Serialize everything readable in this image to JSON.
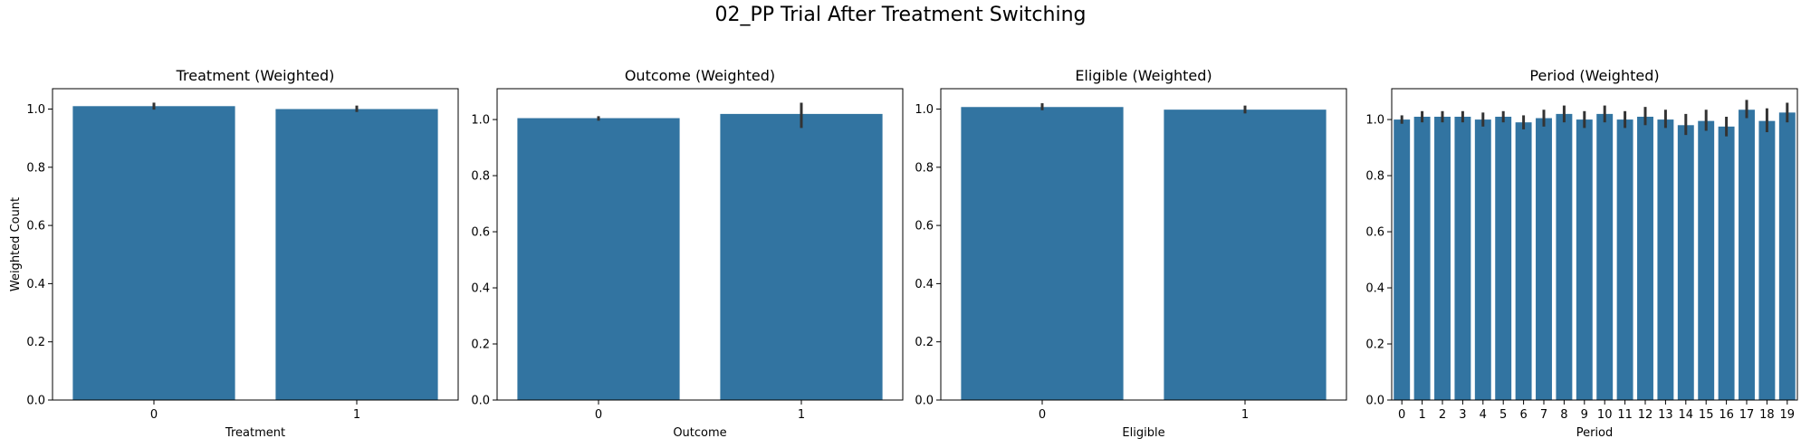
{
  "figure": {
    "suptitle": "02_PP Trial After Treatment Switching"
  },
  "colors": {
    "bar": "#3274a1",
    "errorbar": "#333333",
    "axis": "#000000"
  },
  "chart_data": [
    {
      "type": "bar",
      "title": "Treatment (Weighted)",
      "xlabel": "Treatment",
      "ylabel": "Weighted Count",
      "ylim": [
        0,
        1.07
      ],
      "yticks": [
        0.0,
        0.2,
        0.4,
        0.6,
        0.8,
        1.0
      ],
      "ytick_labels": [
        "0.0",
        "0.2",
        "0.4",
        "0.6",
        "0.8",
        "1.0"
      ],
      "categories": [
        "0",
        "1"
      ],
      "values": [
        1.01,
        1.0
      ],
      "ci": [
        [
          0.998,
          1.022
        ],
        [
          0.99,
          1.012
        ]
      ],
      "grid": false
    },
    {
      "type": "bar",
      "title": "Outcome (Weighted)",
      "xlabel": "Outcome",
      "ylabel": "",
      "ylim": [
        0,
        1.11
      ],
      "yticks": [
        0.0,
        0.2,
        0.4,
        0.6,
        0.8,
        1.0
      ],
      "ytick_labels": [
        "0.0",
        "0.2",
        "0.4",
        "0.6",
        "0.8",
        "1.0"
      ],
      "categories": [
        "0",
        "1"
      ],
      "values": [
        1.005,
        1.02
      ],
      "ci": [
        [
          0.996,
          1.012
        ],
        [
          0.97,
          1.06
        ]
      ],
      "grid": false
    },
    {
      "type": "bar",
      "title": "Eligible (Weighted)",
      "xlabel": "Eligible",
      "ylabel": "",
      "ylim": [
        0,
        1.07
      ],
      "yticks": [
        0.0,
        0.2,
        0.4,
        0.6,
        0.8,
        1.0
      ],
      "ytick_labels": [
        "0.0",
        "0.2",
        "0.4",
        "0.6",
        "0.8",
        "1.0"
      ],
      "categories": [
        "0",
        "1"
      ],
      "values": [
        1.007,
        0.998
      ],
      "ci": [
        [
          0.996,
          1.02
        ],
        [
          0.985,
          1.012
        ]
      ],
      "grid": false
    },
    {
      "type": "bar",
      "title": "Period (Weighted)",
      "xlabel": "Period",
      "ylabel": "",
      "ylim": [
        0,
        1.11
      ],
      "yticks": [
        0.0,
        0.2,
        0.4,
        0.6,
        0.8,
        1.0
      ],
      "ytick_labels": [
        "0.0",
        "0.2",
        "0.4",
        "0.6",
        "0.8",
        "1.0"
      ],
      "categories": [
        "0",
        "1",
        "2",
        "3",
        "4",
        "5",
        "6",
        "7",
        "8",
        "9",
        "10",
        "11",
        "12",
        "13",
        "14",
        "15",
        "16",
        "17",
        "18",
        "19"
      ],
      "values": [
        1.0,
        1.01,
        1.01,
        1.01,
        1.0,
        1.01,
        0.99,
        1.005,
        1.02,
        1.0,
        1.02,
        1.0,
        1.01,
        1.0,
        0.98,
        0.995,
        0.975,
        1.035,
        0.995,
        1.025
      ],
      "ci": [
        [
          0.985,
          1.015
        ],
        [
          0.99,
          1.03
        ],
        [
          0.99,
          1.03
        ],
        [
          0.99,
          1.03
        ],
        [
          0.975,
          1.025
        ],
        [
          0.99,
          1.03
        ],
        [
          0.965,
          1.015
        ],
        [
          0.975,
          1.035
        ],
        [
          0.99,
          1.05
        ],
        [
          0.97,
          1.03
        ],
        [
          0.99,
          1.05
        ],
        [
          0.97,
          1.03
        ],
        [
          0.98,
          1.045
        ],
        [
          0.97,
          1.035
        ],
        [
          0.945,
          1.02
        ],
        [
          0.96,
          1.035
        ],
        [
          0.94,
          1.01
        ],
        [
          1.005,
          1.07
        ],
        [
          0.955,
          1.04
        ],
        [
          0.99,
          1.06
        ]
      ],
      "grid": false
    }
  ]
}
